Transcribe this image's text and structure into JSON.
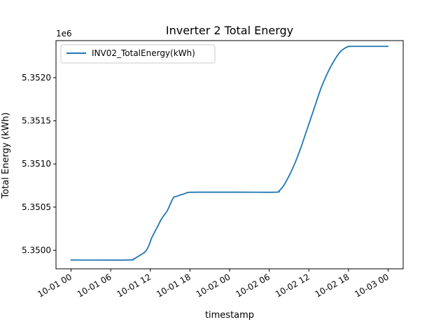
{
  "chart_data": {
    "type": "line",
    "title": "Inverter 2 Total Energy",
    "xlabel": "timestamp",
    "ylabel": "Total Energy (kWh)",
    "y_offset_label": "1e6",
    "y_scale_factor": 1000000,
    "legend_position": "upper-left",
    "grid": false,
    "xlim": [
      "2023-10-01T00:00",
      "2023-10-03T00:00"
    ],
    "ylim": [
      5349785,
      5352430
    ],
    "x_ticks": [
      {
        "value": "2023-10-01T00:00",
        "label": "10-01 00"
      },
      {
        "value": "2023-10-01T06:00",
        "label": "10-01 06"
      },
      {
        "value": "2023-10-01T12:00",
        "label": "10-01 12"
      },
      {
        "value": "2023-10-01T18:00",
        "label": "10-01 18"
      },
      {
        "value": "2023-10-02T00:00",
        "label": "10-02 00"
      },
      {
        "value": "2023-10-02T06:00",
        "label": "10-02 06"
      },
      {
        "value": "2023-10-02T12:00",
        "label": "10-02 12"
      },
      {
        "value": "2023-10-02T18:00",
        "label": "10-02 18"
      },
      {
        "value": "2023-10-03T00:00",
        "label": "10-03 00"
      }
    ],
    "y_ticks": [
      {
        "value": 5350000,
        "label": "5.3500"
      },
      {
        "value": 5350500,
        "label": "5.3505"
      },
      {
        "value": 5351000,
        "label": "5.3510"
      },
      {
        "value": 5351500,
        "label": "5.3515"
      },
      {
        "value": 5352000,
        "label": "5.3520"
      }
    ],
    "series": [
      {
        "name": "INV02_TotalEnergy(kWh)",
        "color": "#1f77b4",
        "points": [
          [
            "2023-10-01T00:00",
            5349887
          ],
          [
            "2023-10-01T08:30",
            5349887
          ],
          [
            "2023-10-01T09:30",
            5349900
          ],
          [
            "2023-10-01T10:30",
            5349945
          ],
          [
            "2023-10-01T11:15",
            5349985
          ],
          [
            "2023-10-01T11:45",
            5350050
          ],
          [
            "2023-10-01T12:15",
            5350150
          ],
          [
            "2023-10-01T13:00",
            5350260
          ],
          [
            "2023-10-01T13:45",
            5350370
          ],
          [
            "2023-10-01T14:30",
            5350450
          ],
          [
            "2023-10-01T15:00",
            5350530
          ],
          [
            "2023-10-01T15:30",
            5350610
          ],
          [
            "2023-10-01T16:00",
            5350625
          ],
          [
            "2023-10-01T16:30",
            5350640
          ],
          [
            "2023-10-01T17:00",
            5350650
          ],
          [
            "2023-10-01T17:30",
            5350665
          ],
          [
            "2023-10-01T18:00",
            5350672
          ],
          [
            "2023-10-01T20:00",
            5350673
          ],
          [
            "2023-10-02T02:00",
            5350673
          ],
          [
            "2023-10-02T07:00",
            5350673
          ],
          [
            "2023-10-02T07:30",
            5350690
          ],
          [
            "2023-10-02T08:00",
            5350730
          ],
          [
            "2023-10-02T08:30",
            5350790
          ],
          [
            "2023-10-02T09:15",
            5350900
          ],
          [
            "2023-10-02T10:00",
            5351030
          ],
          [
            "2023-10-02T10:45",
            5351180
          ],
          [
            "2023-10-02T11:30",
            5351350
          ],
          [
            "2023-10-02T12:15",
            5351520
          ],
          [
            "2023-10-02T13:00",
            5351690
          ],
          [
            "2023-10-02T13:45",
            5351860
          ],
          [
            "2023-10-02T14:30",
            5352000
          ],
          [
            "2023-10-02T15:15",
            5352120
          ],
          [
            "2023-10-02T16:00",
            5352220
          ],
          [
            "2023-10-02T16:45",
            5352300
          ],
          [
            "2023-10-02T17:30",
            5352345
          ],
          [
            "2023-10-02T18:00",
            5352360
          ],
          [
            "2023-10-02T18:30",
            5352363
          ],
          [
            "2023-10-02T23:59",
            5352363
          ]
        ]
      }
    ]
  }
}
